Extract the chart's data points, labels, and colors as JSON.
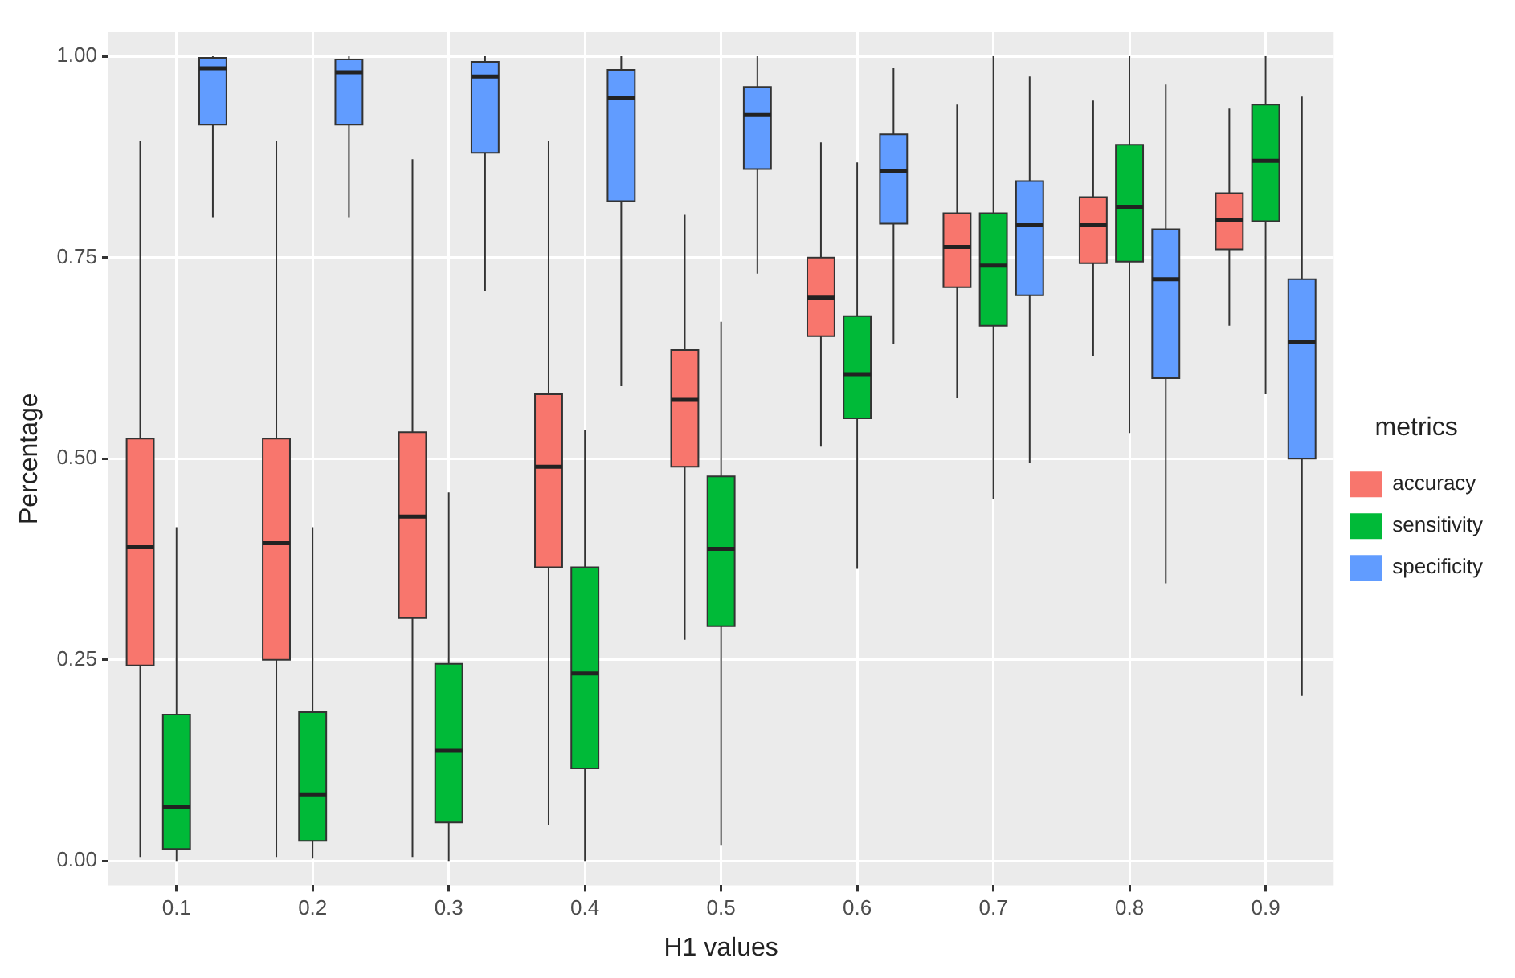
{
  "chart_data": {
    "type": "box",
    "xlabel": "H1 values",
    "ylabel": "Percentage",
    "legend_title": "metrics",
    "legend": "right",
    "grid": true,
    "categories": [
      "0.1",
      "0.2",
      "0.3",
      "0.4",
      "0.5",
      "0.6",
      "0.7",
      "0.8",
      "0.9"
    ],
    "ylim": [
      -0.03,
      1.03
    ],
    "yticks": [
      {
        "value": 0,
        "label": "0.00"
      },
      {
        "value": 0.25,
        "label": "0.25"
      },
      {
        "value": 0.5,
        "label": "0.50"
      },
      {
        "value": 0.75,
        "label": "0.75"
      },
      {
        "value": 1,
        "label": "1.00"
      }
    ],
    "series": [
      {
        "name": "accuracy",
        "color": "#f8766d",
        "boxes": [
          {
            "low": 0.005,
            "q1": 0.243,
            "median": 0.39,
            "q3": 0.525,
            "high": 0.895
          },
          {
            "low": 0.005,
            "q1": 0.25,
            "median": 0.395,
            "q3": 0.525,
            "high": 0.895
          },
          {
            "low": 0.005,
            "q1": 0.302,
            "median": 0.428,
            "q3": 0.533,
            "high": 0.872
          },
          {
            "low": 0.045,
            "q1": 0.365,
            "median": 0.49,
            "q3": 0.58,
            "high": 0.895
          },
          {
            "low": 0.275,
            "q1": 0.49,
            "median": 0.573,
            "q3": 0.635,
            "high": 0.803
          },
          {
            "low": 0.515,
            "q1": 0.652,
            "median": 0.7,
            "q3": 0.75,
            "high": 0.893
          },
          {
            "low": 0.575,
            "q1": 0.713,
            "median": 0.763,
            "q3": 0.805,
            "high": 0.94
          },
          {
            "low": 0.628,
            "q1": 0.743,
            "median": 0.79,
            "q3": 0.825,
            "high": 0.945
          },
          {
            "low": 0.665,
            "q1": 0.76,
            "median": 0.797,
            "q3": 0.83,
            "high": 0.935
          }
        ]
      },
      {
        "name": "sensitivity",
        "color": "#00ba38",
        "boxes": [
          {
            "low": 0,
            "q1": 0.015,
            "median": 0.067,
            "q3": 0.182,
            "high": 0.415
          },
          {
            "low": 0.003,
            "q1": 0.025,
            "median": 0.083,
            "q3": 0.185,
            "high": 0.415
          },
          {
            "low": 0,
            "q1": 0.048,
            "median": 0.137,
            "q3": 0.245,
            "high": 0.458
          },
          {
            "low": 0,
            "q1": 0.115,
            "median": 0.233,
            "q3": 0.365,
            "high": 0.535
          },
          {
            "low": 0.02,
            "q1": 0.292,
            "median": 0.388,
            "q3": 0.478,
            "high": 0.67
          },
          {
            "low": 0.363,
            "q1": 0.55,
            "median": 0.605,
            "q3": 0.677,
            "high": 0.868
          },
          {
            "low": 0.45,
            "q1": 0.665,
            "median": 0.74,
            "q3": 0.805,
            "high": 1
          },
          {
            "low": 0.532,
            "q1": 0.745,
            "median": 0.813,
            "q3": 0.89,
            "high": 1
          },
          {
            "low": 0.58,
            "q1": 0.795,
            "median": 0.87,
            "q3": 0.94,
            "high": 1
          }
        ]
      },
      {
        "name": "specificity",
        "color": "#619cff",
        "boxes": [
          {
            "low": 0.8,
            "q1": 0.915,
            "median": 0.985,
            "q3": 0.998,
            "high": 1
          },
          {
            "low": 0.8,
            "q1": 0.915,
            "median": 0.98,
            "q3": 0.996,
            "high": 1
          },
          {
            "low": 0.708,
            "q1": 0.88,
            "median": 0.975,
            "q3": 0.993,
            "high": 1
          },
          {
            "low": 0.59,
            "q1": 0.82,
            "median": 0.948,
            "q3": 0.983,
            "high": 1
          },
          {
            "low": 0.73,
            "q1": 0.86,
            "median": 0.927,
            "q3": 0.962,
            "high": 1
          },
          {
            "low": 0.643,
            "q1": 0.792,
            "median": 0.858,
            "q3": 0.903,
            "high": 0.985
          },
          {
            "low": 0.495,
            "q1": 0.703,
            "median": 0.79,
            "q3": 0.845,
            "high": 0.975
          },
          {
            "low": 0.345,
            "q1": 0.6,
            "median": 0.723,
            "q3": 0.785,
            "high": 0.965
          },
          {
            "low": 0.205,
            "q1": 0.5,
            "median": 0.645,
            "q3": 0.723,
            "high": 0.95
          }
        ]
      }
    ]
  }
}
